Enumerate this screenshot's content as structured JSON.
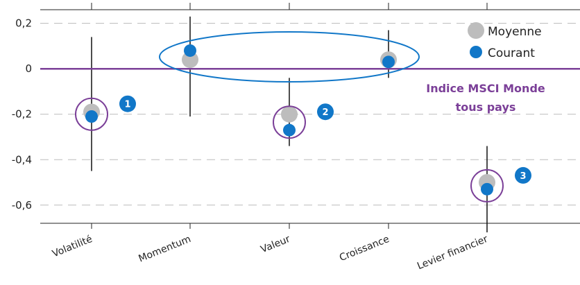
{
  "chart_data": {
    "type": "scatter",
    "categories": [
      "Volatilité",
      "Momentum",
      "Valeur",
      "Croissance",
      "Levier financier"
    ],
    "series": [
      {
        "name": "Moyenne",
        "values": [
          -0.19,
          0.04,
          -0.2,
          0.04,
          -0.5
        ]
      },
      {
        "name": "Courant",
        "values": [
          -0.21,
          0.08,
          -0.27,
          0.03,
          -0.53
        ]
      }
    ],
    "ranges": [
      {
        "low": -0.45,
        "high": 0.14
      },
      {
        "low": -0.21,
        "high": 0.23
      },
      {
        "low": -0.34,
        "high": -0.04
      },
      {
        "low": -0.04,
        "high": 0.17
      },
      {
        "low": -0.72,
        "high": -0.34
      }
    ],
    "ylim": [
      -0.68,
      0.26
    ],
    "yticks": [
      0.2,
      0,
      -0.2,
      -0.4,
      -0.6
    ],
    "ytick_labels": [
      "0,2",
      "0",
      "-0,2",
      "-0,4",
      "-0,6"
    ],
    "grid": true,
    "legend_position": "top-right",
    "baseline": {
      "value": 0,
      "label_line1": "Indice MSCI Monde",
      "label_line2": "tous pays",
      "color": "#7B3F98"
    },
    "highlights": [
      {
        "category_index": 0,
        "number": "1"
      },
      {
        "category_index": 2,
        "number": "2"
      },
      {
        "category_index": 4,
        "number": "3"
      }
    ],
    "colors": {
      "moyenne": "#BDBDBD",
      "courant": "#1177C8",
      "baseline": "#7B3F98",
      "ellipse": "#1177C8",
      "range_line": "#111111",
      "grid": "#BBBBBB"
    }
  }
}
